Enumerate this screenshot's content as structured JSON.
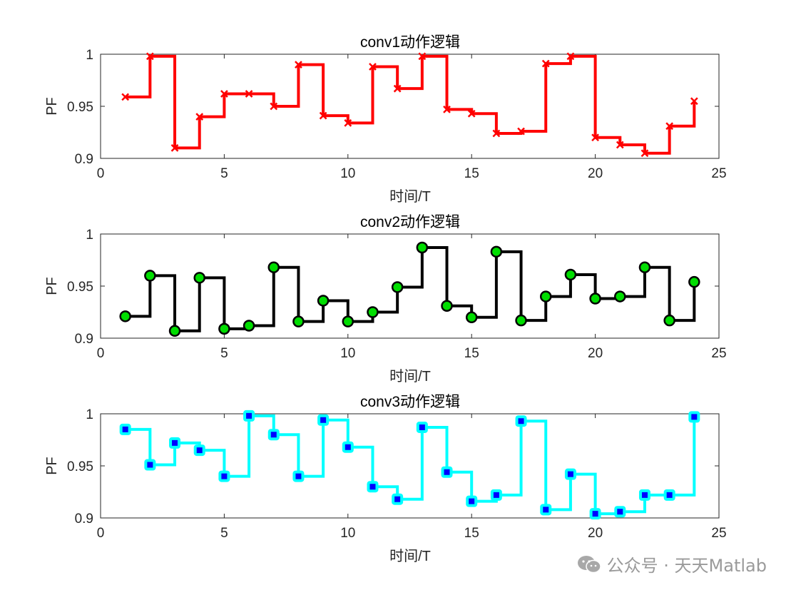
{
  "watermark": {
    "text": "公众号 · 天天Matlab"
  },
  "chart_data": [
    {
      "type": "line",
      "step": "post",
      "title": "conv1动作逻辑",
      "xlabel": "时间/T",
      "ylabel": "PF",
      "xlim": [
        0,
        25
      ],
      "ylim": [
        0.9,
        1
      ],
      "xticks": [
        "0",
        "5",
        "10",
        "15",
        "20",
        "25"
      ],
      "yticks": [
        "0.9",
        "0.95",
        "1"
      ],
      "color": "#ff0000",
      "marker": "x",
      "marker_color": "#ff0000",
      "x": [
        1,
        2,
        3,
        4,
        5,
        6,
        7,
        8,
        9,
        10,
        11,
        12,
        13,
        14,
        15,
        16,
        17,
        18,
        19,
        20,
        21,
        22,
        23,
        24
      ],
      "values": [
        0.959,
        0.998,
        0.91,
        0.94,
        0.962,
        0.962,
        0.95,
        0.99,
        0.941,
        0.934,
        0.988,
        0.967,
        0.998,
        0.947,
        0.943,
        0.924,
        0.926,
        0.991,
        0.998,
        0.92,
        0.913,
        0.905,
        0.931,
        0.955
      ]
    },
    {
      "type": "line",
      "step": "post",
      "title": "conv2动作逻辑",
      "xlabel": "时间/T",
      "ylabel": "PF",
      "xlim": [
        0,
        25
      ],
      "ylim": [
        0.9,
        1
      ],
      "xticks": [
        "0",
        "5",
        "10",
        "15",
        "20",
        "25"
      ],
      "yticks": [
        "0.9",
        "0.95",
        "1"
      ],
      "color": "#000000",
      "marker": "circle",
      "marker_color": "#00dd00",
      "x": [
        1,
        2,
        3,
        4,
        5,
        6,
        7,
        8,
        9,
        10,
        11,
        12,
        13,
        14,
        15,
        16,
        17,
        18,
        19,
        20,
        21,
        22,
        23,
        24
      ],
      "values": [
        0.921,
        0.96,
        0.907,
        0.958,
        0.909,
        0.912,
        0.968,
        0.916,
        0.936,
        0.916,
        0.925,
        0.949,
        0.987,
        0.931,
        0.92,
        0.983,
        0.917,
        0.94,
        0.961,
        0.938,
        0.94,
        0.968,
        0.917,
        0.954
      ]
    },
    {
      "type": "line",
      "step": "post",
      "title": "conv3动作逻辑",
      "xlabel": "时间/T",
      "ylabel": "PF",
      "xlim": [
        0,
        25
      ],
      "ylim": [
        0.9,
        1
      ],
      "xticks": [
        "0",
        "5",
        "10",
        "15",
        "20",
        "25"
      ],
      "yticks": [
        "0.9",
        "0.95",
        "1"
      ],
      "color": "#00ffff",
      "marker": "square",
      "marker_color": "#0000ff",
      "x": [
        1,
        2,
        3,
        4,
        5,
        6,
        7,
        8,
        9,
        10,
        11,
        12,
        13,
        14,
        15,
        16,
        17,
        18,
        19,
        20,
        21,
        22,
        23,
        24
      ],
      "values": [
        0.985,
        0.951,
        0.972,
        0.965,
        0.94,
        0.998,
        0.98,
        0.94,
        0.994,
        0.968,
        0.93,
        0.918,
        0.987,
        0.944,
        0.916,
        0.922,
        0.993,
        0.908,
        0.942,
        0.904,
        0.906,
        0.922,
        0.922,
        0.997
      ]
    }
  ]
}
